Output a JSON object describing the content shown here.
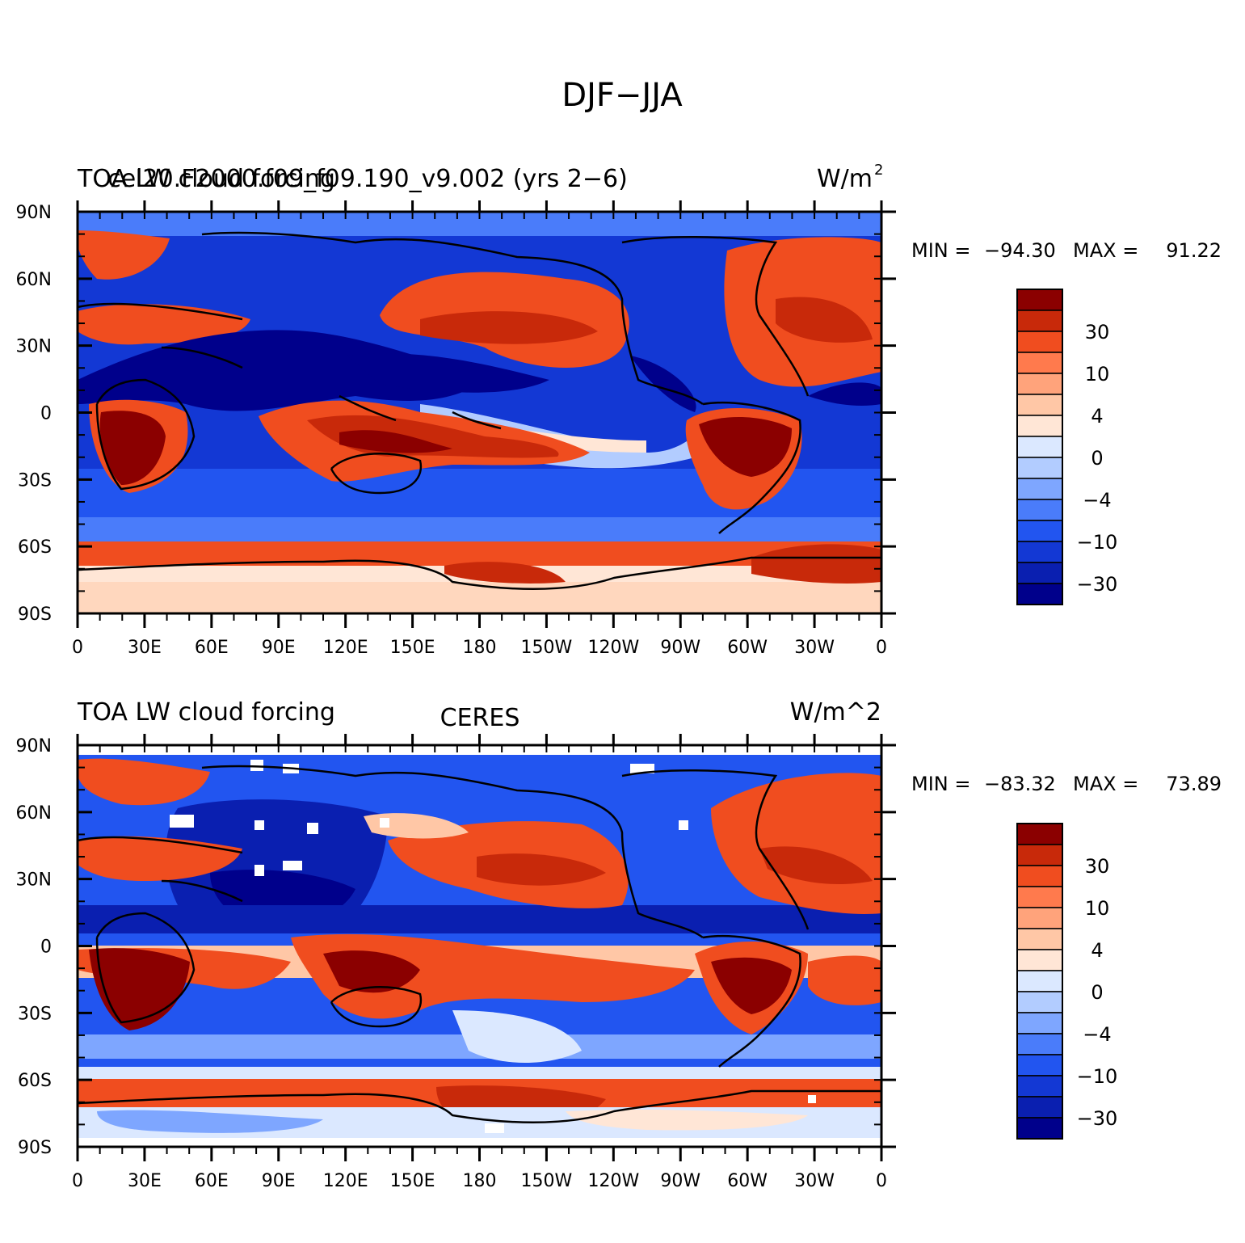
{
  "figure": {
    "title": "DJF−JJA"
  },
  "palette": [
    "#00008b",
    "#0a1fb0",
    "#1338d4",
    "#2255f0",
    "#4a7cfa",
    "#7ea6ff",
    "#b2ccff",
    "#dbe8ff",
    "#ffe6d6",
    "#ffc7a6",
    "#ffa37b",
    "#ff7a4d",
    "#f04d1f",
    "#c8290a",
    "#8b0000"
  ],
  "colorbar": {
    "labels": [
      "30",
      "10",
      "4",
      "0",
      "−4",
      "−10",
      "−30"
    ]
  },
  "axes": {
    "lat_labels": [
      "90N",
      "60N",
      "30N",
      "0",
      "30S",
      "60S",
      "90S"
    ],
    "lon_labels": [
      "0",
      "30E",
      "60E",
      "90E",
      "120E",
      "150E",
      "180",
      "150W",
      "120W",
      "90W",
      "60W",
      "30W",
      "0"
    ]
  },
  "panels": [
    {
      "left_title": "TOA LW cloud forcing",
      "center_title": "cel20.F2000.f09_f09.190_v9.002 (yrs 2−6)",
      "right_title": "W/m",
      "right_title_sup": "2",
      "min_label": "MIN =",
      "min_value": "−94.30",
      "max_label": "MAX =",
      "max_value": "91.22"
    },
    {
      "left_title": "TOA LW cloud forcing",
      "center_title": "CERES",
      "right_title": "W/m^2",
      "right_title_sup": "",
      "min_label": "MIN =",
      "min_value": "−83.32",
      "max_label": "MAX =",
      "max_value": "73.89"
    }
  ]
}
